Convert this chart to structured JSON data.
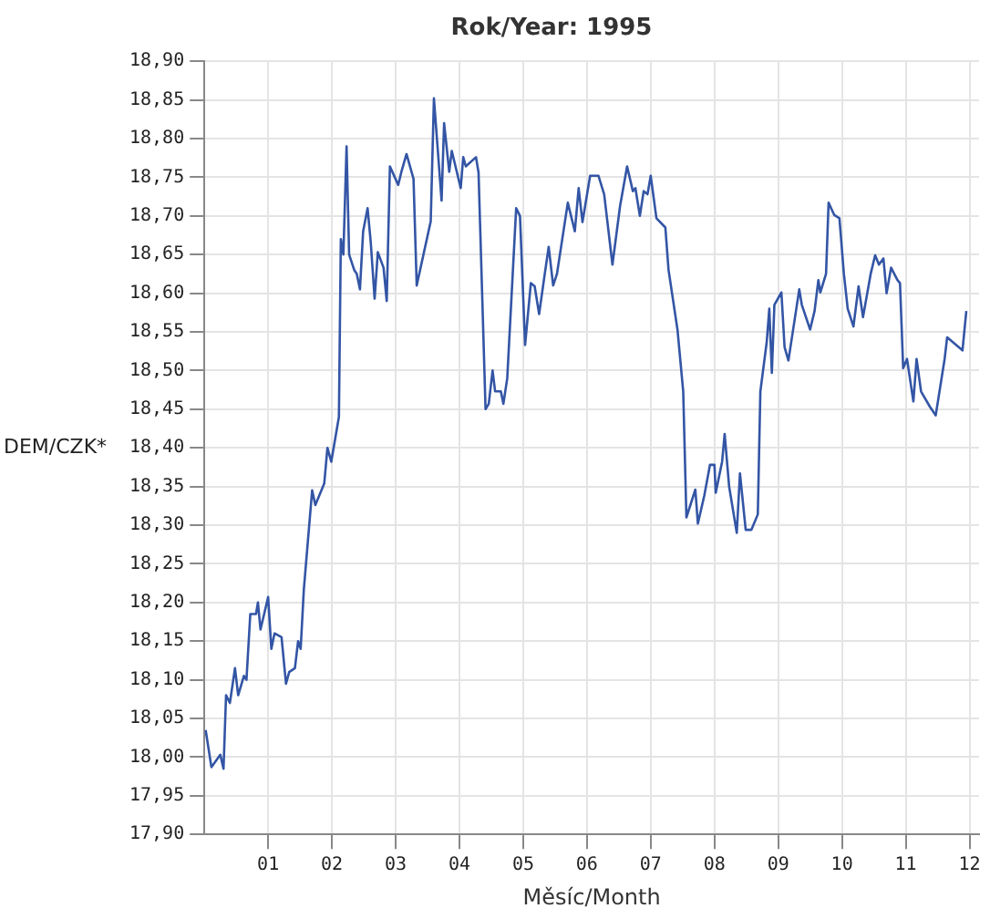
{
  "chart_data": {
    "type": "line",
    "title": "Rok/Year: 1995",
    "xlabel": "Měsíc/Month",
    "ylabel": "DEM/CZK*",
    "xlim": [
      0,
      12.15
    ],
    "xticks": [
      {
        "value": 1,
        "label": "01"
      },
      {
        "value": 2,
        "label": "02"
      },
      {
        "value": 3,
        "label": "03"
      },
      {
        "value": 4,
        "label": "04"
      },
      {
        "value": 5,
        "label": "05"
      },
      {
        "value": 6,
        "label": "06"
      },
      {
        "value": 7,
        "label": "07"
      },
      {
        "value": 8,
        "label": "08"
      },
      {
        "value": 9,
        "label": "09"
      },
      {
        "value": 10,
        "label": "10"
      },
      {
        "value": 11,
        "label": "11"
      },
      {
        "value": 12,
        "label": "12"
      }
    ],
    "ylim": [
      17.9,
      18.9
    ],
    "yticks": [
      {
        "value": 17.9,
        "label": "17,90"
      },
      {
        "value": 17.95,
        "label": "17,95"
      },
      {
        "value": 18,
        "label": "18,00"
      },
      {
        "value": 18.05,
        "label": "18,05"
      },
      {
        "value": 18.1,
        "label": "18,10"
      },
      {
        "value": 18.15,
        "label": "18,15"
      },
      {
        "value": 18.2,
        "label": "18,20"
      },
      {
        "value": 18.25,
        "label": "18,25"
      },
      {
        "value": 18.3,
        "label": "18,30"
      },
      {
        "value": 18.35,
        "label": "18,35"
      },
      {
        "value": 18.4,
        "label": "18,40"
      },
      {
        "value": 18.45,
        "label": "18,45"
      },
      {
        "value": 18.5,
        "label": "18,50"
      },
      {
        "value": 18.55,
        "label": "18,55"
      },
      {
        "value": 18.6,
        "label": "18,60"
      },
      {
        "value": 18.65,
        "label": "18,65"
      },
      {
        "value": 18.7,
        "label": "18,70"
      },
      {
        "value": 18.75,
        "label": "18,75"
      },
      {
        "value": 18.8,
        "label": "18,80"
      },
      {
        "value": 18.85,
        "label": "18,85"
      },
      {
        "value": 18.9,
        "label": "18,90"
      }
    ],
    "grid": true,
    "marker": "none",
    "line_style": "solid",
    "series": [
      {
        "color": "#3355a5",
        "x": [
          0.02,
          0.11,
          0.25,
          0.3,
          0.34,
          0.4,
          0.48,
          0.53,
          0.62,
          0.66,
          0.72,
          0.81,
          0.84,
          0.88,
          1.0,
          1.05,
          1.1,
          1.21,
          1.28,
          1.33,
          1.42,
          1.47,
          1.51,
          1.56,
          1.69,
          1.74,
          1.88,
          1.93,
          1.99,
          2.11,
          2.14,
          2.18,
          2.23,
          2.27,
          2.35,
          2.39,
          2.44,
          2.49,
          2.56,
          2.61,
          2.67,
          2.72,
          2.81,
          2.86,
          2.91,
          3.04,
          3.09,
          3.17,
          3.28,
          3.33,
          3.55,
          3.6,
          3.72,
          3.76,
          3.84,
          3.88,
          4.02,
          4.06,
          4.1,
          4.26,
          4.3,
          4.41,
          4.46,
          4.52,
          4.56,
          4.65,
          4.69,
          4.75,
          4.89,
          4.95,
          5.03,
          5.12,
          5.18,
          5.25,
          5.33,
          5.4,
          5.47,
          5.53,
          5.7,
          5.81,
          5.87,
          5.93,
          6.05,
          6.18,
          6.27,
          6.4,
          6.52,
          6.63,
          6.72,
          6.76,
          6.83,
          6.89,
          6.95,
          7.0,
          7.09,
          7.23,
          7.28,
          7.42,
          7.51,
          7.56,
          7.7,
          7.74,
          7.84,
          7.93,
          8.0,
          8.02,
          8.12,
          8.16,
          8.23,
          8.35,
          8.4,
          8.49,
          8.58,
          8.68,
          8.72,
          8.82,
          8.86,
          8.9,
          8.94,
          9.05,
          9.1,
          9.16,
          9.33,
          9.37,
          9.5,
          9.57,
          9.63,
          9.66,
          9.75,
          9.79,
          9.88,
          9.96,
          10.03,
          10.09,
          10.18,
          10.26,
          10.33,
          10.45,
          10.52,
          10.58,
          10.65,
          10.7,
          10.77,
          10.87,
          10.91,
          10.96,
          11.02,
          11.12,
          11.17,
          11.24,
          11.38,
          11.47,
          11.61,
          11.65,
          11.89,
          11.95
        ],
        "values": [
          18.035,
          17.987,
          18.003,
          17.985,
          18.08,
          18.07,
          18.115,
          18.08,
          18.105,
          18.1,
          18.185,
          18.185,
          18.2,
          18.165,
          18.207,
          18.14,
          18.16,
          18.155,
          18.095,
          18.11,
          18.115,
          18.15,
          18.14,
          18.217,
          18.345,
          18.326,
          18.354,
          18.4,
          18.382,
          18.44,
          18.67,
          18.65,
          18.79,
          18.65,
          18.63,
          18.625,
          18.605,
          18.68,
          18.71,
          18.665,
          18.593,
          18.653,
          18.633,
          18.59,
          18.764,
          18.74,
          18.757,
          18.78,
          18.748,
          18.61,
          18.693,
          18.852,
          18.72,
          18.82,
          18.757,
          18.784,
          18.736,
          18.776,
          18.764,
          18.776,
          18.756,
          18.45,
          18.457,
          18.5,
          18.473,
          18.473,
          18.457,
          18.49,
          18.71,
          18.7,
          18.533,
          18.613,
          18.609,
          18.573,
          18.62,
          18.66,
          18.61,
          18.625,
          18.717,
          18.68,
          18.736,
          18.692,
          18.752,
          18.752,
          18.728,
          18.637,
          18.713,
          18.764,
          18.732,
          18.736,
          18.7,
          18.732,
          18.728,
          18.752,
          18.697,
          18.685,
          18.63,
          18.553,
          18.473,
          18.31,
          18.346,
          18.302,
          18.338,
          18.378,
          18.378,
          18.342,
          18.382,
          18.418,
          18.35,
          18.29,
          18.367,
          18.294,
          18.294,
          18.314,
          18.473,
          18.537,
          18.58,
          18.497,
          18.585,
          18.601,
          18.53,
          18.513,
          18.605,
          18.585,
          18.553,
          18.577,
          18.617,
          18.601,
          18.625,
          18.717,
          18.701,
          18.697,
          18.625,
          18.58,
          18.557,
          18.609,
          18.569,
          18.625,
          18.649,
          18.637,
          18.645,
          18.6,
          18.633,
          18.617,
          18.613,
          18.503,
          18.515,
          18.46,
          18.515,
          18.473,
          18.453,
          18.442,
          18.515,
          18.543,
          18.526,
          18.577
        ]
      }
    ]
  }
}
